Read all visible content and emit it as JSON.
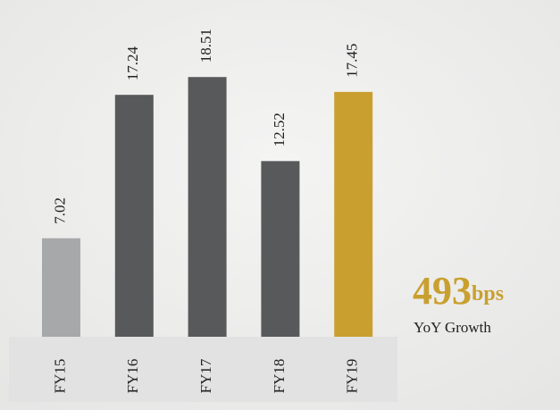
{
  "chart_data": {
    "type": "bar",
    "categories": [
      "FY15",
      "FY16",
      "FY17",
      "FY18",
      "FY19"
    ],
    "values": [
      7.02,
      17.24,
      18.51,
      12.52,
      17.45
    ],
    "colors": [
      "#a7a8aa",
      "#58595b",
      "#58595b",
      "#58595b",
      "#c9a02f"
    ],
    "ylim": [
      0,
      24
    ],
    "annotation": {
      "value": 493,
      "unit": "bps",
      "text": "YoY Growth",
      "color": "#c9a02f"
    }
  }
}
